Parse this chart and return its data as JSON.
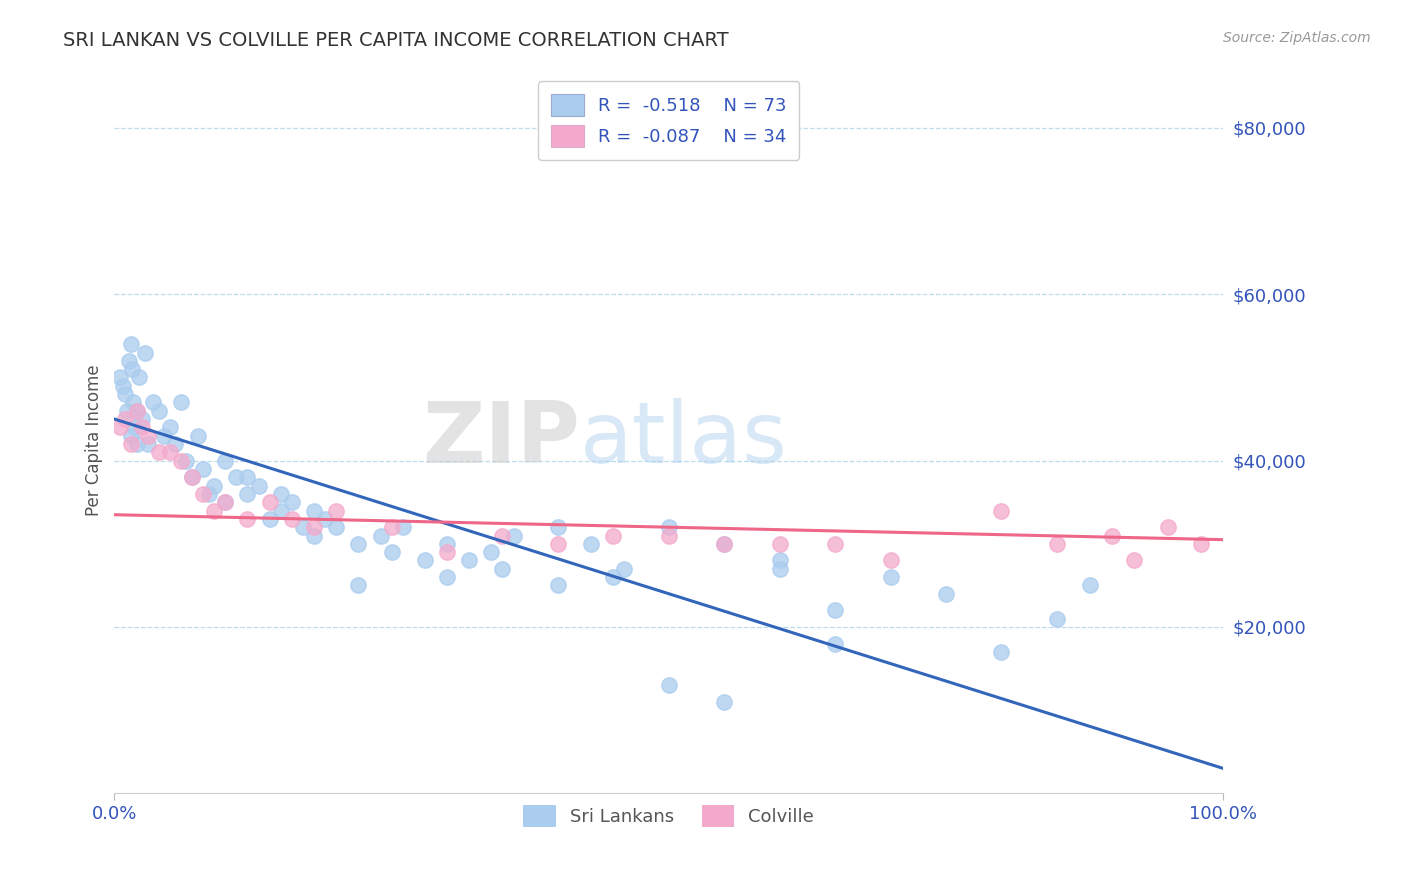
{
  "title": "SRI LANKAN VS COLVILLE PER CAPITA INCOME CORRELATION CHART",
  "source_text": "Source: ZipAtlas.com",
  "ylabel": "Per Capita Income",
  "watermark": "ZIPatlas",
  "xlim": [
    0.0,
    100.0
  ],
  "ylim": [
    0,
    85000
  ],
  "yticks": [
    20000,
    40000,
    60000,
    80000
  ],
  "ytick_labels": [
    "$20,000",
    "$40,000",
    "$60,000",
    "$80,000"
  ],
  "xticks": [
    0.0,
    100.0
  ],
  "xtick_labels": [
    "0.0%",
    "100.0%"
  ],
  "blue_dot_color": "#aaccee",
  "pink_dot_color": "#f4aacc",
  "blue_line_color": "#3366bb",
  "pink_line_color": "#ee6688",
  "tick_label_color": "#3355bb",
  "grid_color": "#bbddee",
  "background_color": "#ffffff",
  "title_color": "#333333",
  "blue_line_x0": 0,
  "blue_line_y0": 45000,
  "blue_line_x1": 100,
  "blue_line_y1": 3000,
  "pink_line_x0": 0,
  "pink_line_y0": 33500,
  "pink_line_x1": 100,
  "pink_line_y1": 30500,
  "sri_lankan_x": [
    0.5,
    0.8,
    1.0,
    1.1,
    1.3,
    1.5,
    1.5,
    1.6,
    1.7,
    1.8,
    2.0,
    2.0,
    2.2,
    2.5,
    2.8,
    3.0,
    3.5,
    4.0,
    4.5,
    5.0,
    5.5,
    6.0,
    6.5,
    7.0,
    7.5,
    8.0,
    8.5,
    9.0,
    10.0,
    11.0,
    12.0,
    13.0,
    14.0,
    15.0,
    16.0,
    17.0,
    18.0,
    19.0,
    20.0,
    22.0,
    24.0,
    26.0,
    28.0,
    30.0,
    32.0,
    34.0,
    36.0,
    40.0,
    43.0,
    46.0,
    50.0,
    55.0,
    60.0,
    65.0,
    70.0,
    75.0,
    80.0,
    85.0,
    88.0,
    10.0,
    12.0,
    15.0,
    18.0,
    22.0,
    25.0,
    30.0,
    35.0,
    40.0,
    45.0,
    50.0,
    55.0,
    60.0,
    65.0
  ],
  "sri_lankan_y": [
    50000,
    49000,
    48000,
    46000,
    52000,
    43000,
    54000,
    51000,
    47000,
    44000,
    46000,
    42000,
    50000,
    45000,
    53000,
    42000,
    47000,
    46000,
    43000,
    44000,
    42000,
    47000,
    40000,
    38000,
    43000,
    39000,
    36000,
    37000,
    35000,
    38000,
    36000,
    37000,
    33000,
    34000,
    35000,
    32000,
    34000,
    33000,
    32000,
    30000,
    31000,
    32000,
    28000,
    30000,
    28000,
    29000,
    31000,
    32000,
    30000,
    27000,
    32000,
    30000,
    28000,
    22000,
    26000,
    24000,
    17000,
    21000,
    25000,
    40000,
    38000,
    36000,
    31000,
    25000,
    29000,
    26000,
    27000,
    25000,
    26000,
    13000,
    11000,
    27000,
    18000
  ],
  "colville_x": [
    0.5,
    1.0,
    1.5,
    2.0,
    2.5,
    3.0,
    4.0,
    5.0,
    6.0,
    7.0,
    8.0,
    9.0,
    10.0,
    12.0,
    14.0,
    16.0,
    18.0,
    20.0,
    25.0,
    30.0,
    35.0,
    40.0,
    45.0,
    50.0,
    55.0,
    60.0,
    65.0,
    70.0,
    80.0,
    85.0,
    90.0,
    92.0,
    95.0,
    98.0
  ],
  "colville_y": [
    44000,
    45000,
    42000,
    46000,
    44000,
    43000,
    41000,
    41000,
    40000,
    38000,
    36000,
    34000,
    35000,
    33000,
    35000,
    33000,
    32000,
    34000,
    32000,
    29000,
    31000,
    30000,
    31000,
    31000,
    30000,
    30000,
    30000,
    28000,
    34000,
    30000,
    31000,
    28000,
    32000,
    30000
  ]
}
